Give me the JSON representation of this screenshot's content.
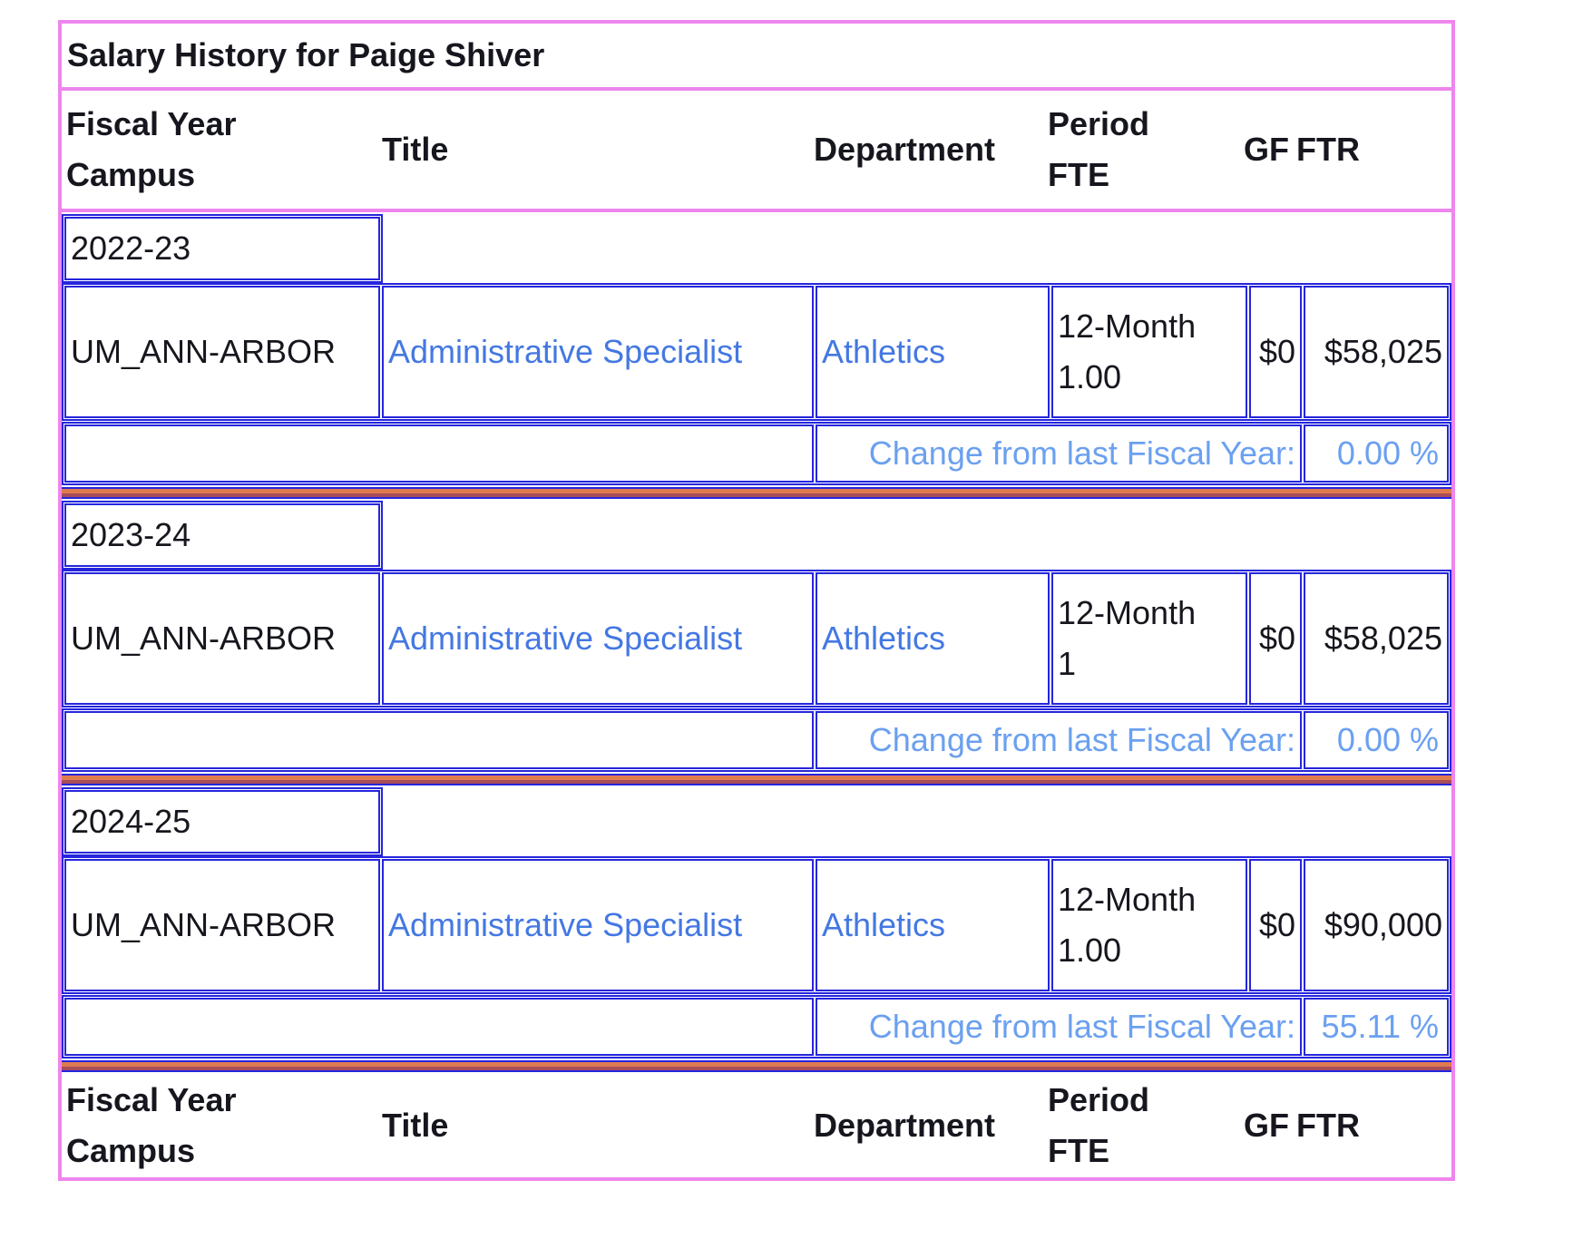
{
  "colors": {
    "border_pink": "#ee86ee",
    "border_blue": "#2525dd",
    "link_blue": "#4478e2",
    "change_blue": "#6ba0f0",
    "separator_orange": "#e07b50",
    "separator_maroon": "#a84d58",
    "text_black": "#16161e"
  },
  "table": {
    "title": "Salary History for Paige Shiver",
    "headers": {
      "fiscal_year": "Fiscal Year",
      "campus": "Campus",
      "title": "Title",
      "department": "Department",
      "period": "Period",
      "fte": "FTE",
      "gf": "GF",
      "ftr": "FTR"
    },
    "change_label": "Change from last Fiscal Year:",
    "years": [
      {
        "fiscal_year": "2022-23",
        "campus": "UM_ANN-ARBOR",
        "title": "Administrative Specialist",
        "department": "Athletics",
        "period": "12-Month",
        "fte": "1.00",
        "gf": "$0",
        "ftr": "$58,025",
        "change": "0.00 %"
      },
      {
        "fiscal_year": "2023-24",
        "campus": "UM_ANN-ARBOR",
        "title": "Administrative Specialist",
        "department": "Athletics",
        "period": "12-Month",
        "fte": "1",
        "gf": "$0",
        "ftr": "$58,025",
        "change": "0.00 %"
      },
      {
        "fiscal_year": "2024-25",
        "campus": "UM_ANN-ARBOR",
        "title": "Administrative Specialist",
        "department": "Athletics",
        "period": "12-Month",
        "fte": "1.00",
        "gf": "$0",
        "ftr": "$90,000",
        "change": "55.11 %"
      }
    ]
  }
}
